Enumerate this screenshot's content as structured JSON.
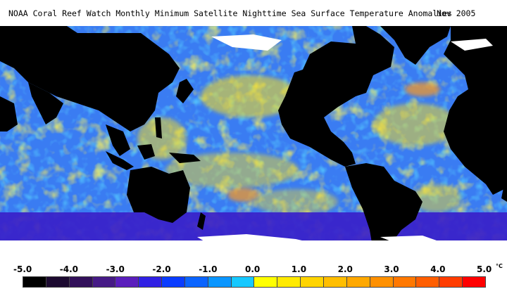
{
  "title": "NOAA Coral Reef Watch Monthly Minimum Satellite Nighttime Sea Surface Temperature Anomalies",
  "date": "Nov 2005",
  "legend": {
    "ticks": [
      "-5.0",
      "-4.0",
      "-3.0",
      "-2.0",
      "-1.0",
      "0.0",
      "1.0",
      "2.0",
      "3.0",
      "4.0",
      "5.0"
    ],
    "unit": "°C",
    "colors": [
      "#000000",
      "#1c0a30",
      "#32105a",
      "#461a86",
      "#5a1ebc",
      "#3020e4",
      "#0a3cff",
      "#0a64ff",
      "#0a96ff",
      "#16c8ff",
      "#ffff00",
      "#ffea00",
      "#ffd400",
      "#ffbe00",
      "#ffa800",
      "#ff9000",
      "#ff7800",
      "#ff5e00",
      "#ff3c00",
      "#ff0000"
    ]
  },
  "map_colors": {
    "land": "#000000",
    "ice": "#ffffff",
    "ocean_base": "#3a7cf2",
    "cool": "#1ea6ff",
    "cold": "#3a1ec8",
    "warm": "#ffe21a",
    "hot": "#ff9a1e"
  }
}
